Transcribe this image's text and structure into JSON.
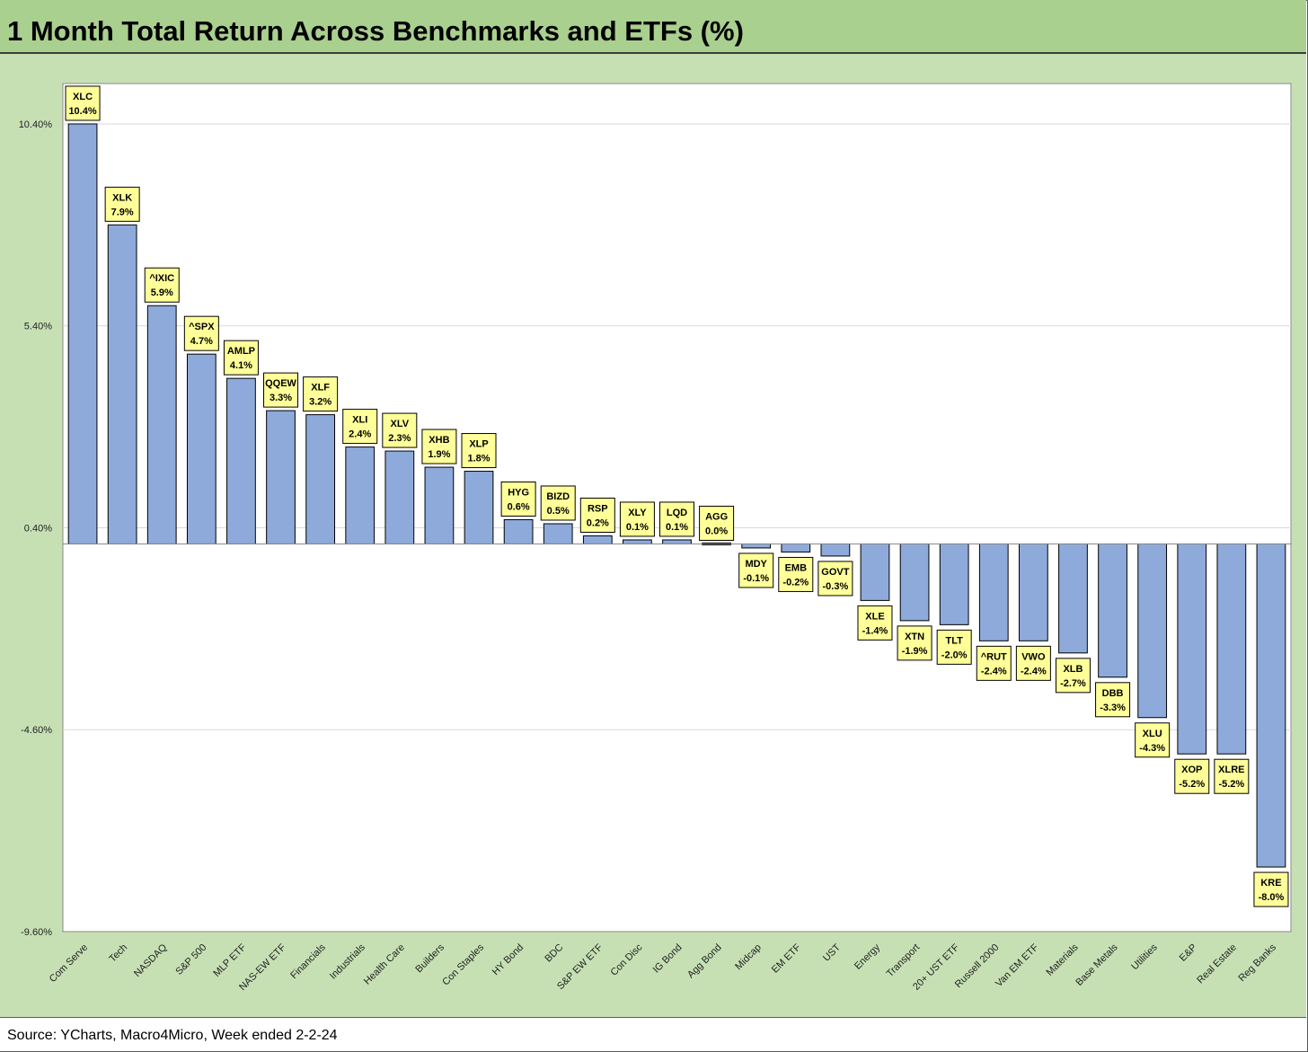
{
  "title": "1 Month Total Return Across Benchmarks and ETFs (%)",
  "source": "Source: YCharts, Macro4Micro, Week ended 2-2-24",
  "colors": {
    "title_bg": "#a9d08e",
    "chart_bg": "#c6e0b4",
    "bar_fill": "#8eaadb",
    "label_fill": "#ffff99"
  },
  "chart_data": {
    "type": "bar",
    "title": "",
    "xlabel": "",
    "ylabel": "",
    "ylim": [
      -9.6,
      11.4
    ],
    "yticks": [
      10.4,
      5.4,
      0.4,
      -4.6,
      -9.6
    ],
    "ytick_labels": [
      "10.40%",
      "5.40%",
      "0.40%",
      "-4.60%",
      "-9.60%"
    ],
    "grid": true,
    "baseline": 0,
    "categories": [
      "Com Serve",
      "Tech",
      "NASDAQ",
      "S&P 500",
      "MLP ETF",
      "NAS-EW ETF",
      "Financials",
      "Industrials",
      "Health Care",
      "Builders",
      "Con Staples",
      "HY Bond",
      "BDC",
      "S&P EW ETF",
      "Con Disc",
      "IG Bond",
      "Agg Bond",
      "Midcap",
      "EM ETF",
      "UST",
      "Energy",
      "Transport",
      "20+ UST ETF",
      "Russell 2000",
      "Van EM ETF",
      "Materials",
      "Base Metals",
      "Utilities",
      "E&P",
      "Real Estate",
      "Reg Banks"
    ],
    "tickers": [
      "XLC",
      "XLK",
      "^IXIC",
      "^SPX",
      "AMLP",
      "QQEW",
      "XLF",
      "XLI",
      "XLV",
      "XHB",
      "XLP",
      "HYG",
      "BIZD",
      "RSP",
      "XLY",
      "LQD",
      "AGG",
      "MDY",
      "EMB",
      "GOVT",
      "XLE",
      "XTN",
      "TLT",
      "^RUT",
      "VWO",
      "XLB",
      "DBB",
      "XLU",
      "XOP",
      "XLRE",
      "KRE"
    ],
    "values": [
      10.4,
      7.9,
      5.9,
      4.7,
      4.1,
      3.3,
      3.2,
      2.4,
      2.3,
      1.9,
      1.8,
      0.6,
      0.5,
      0.2,
      0.1,
      0.1,
      0.0,
      -0.1,
      -0.2,
      -0.3,
      -1.4,
      -1.9,
      -2.0,
      -2.4,
      -2.4,
      -2.7,
      -3.3,
      -4.3,
      -5.2,
      -5.2,
      -8.0
    ],
    "value_labels": [
      "10.4%",
      "7.9%",
      "5.9%",
      "4.7%",
      "4.1%",
      "3.3%",
      "3.2%",
      "2.4%",
      "2.3%",
      "1.9%",
      "1.8%",
      "0.6%",
      "0.5%",
      "0.2%",
      "0.1%",
      "0.1%",
      "0.0%",
      "-0.1%",
      "-0.2%",
      "-0.3%",
      "-1.4%",
      "-1.9%",
      "-2.0%",
      "-2.4%",
      "-2.4%",
      "-2.7%",
      "-3.3%",
      "-4.3%",
      "-5.2%",
      "-5.2%",
      "-8.0%"
    ]
  }
}
